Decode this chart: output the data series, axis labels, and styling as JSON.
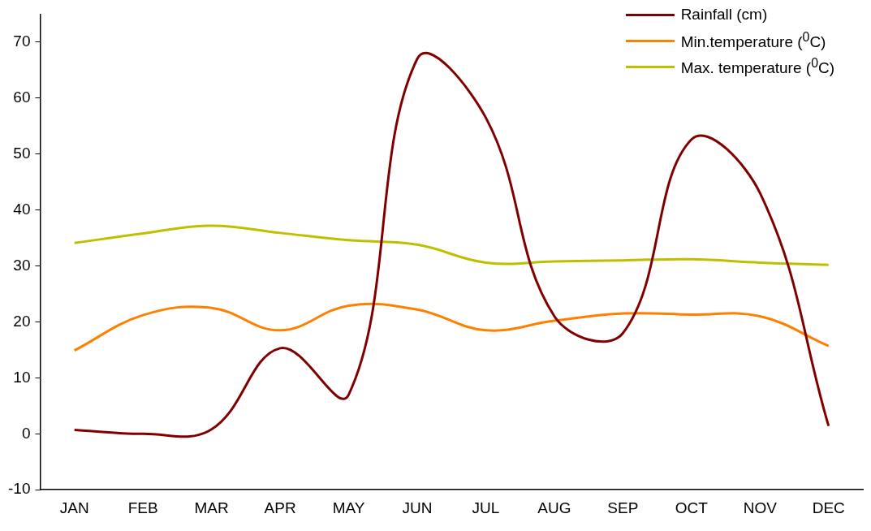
{
  "chart_data": {
    "type": "line",
    "categories": [
      "JAN",
      "FEB",
      "MAR",
      "APR",
      "MAY",
      "JUN",
      "JUL",
      "AUG",
      "SEP",
      "OCT",
      "NOV",
      "DEC"
    ],
    "series": [
      {
        "name": "Rainfall (cm)",
        "color": "#800000",
        "values": [
          0.7,
          0,
          0.8,
          15.3,
          7,
          67,
          56.5,
          21,
          18,
          52.6,
          43,
          1.4
        ]
      },
      {
        "name": "Min.temperature ($^{0}$C)",
        "color": "#ff8000",
        "values": [
          14.9,
          21.2,
          22.5,
          18.5,
          22.9,
          22.2,
          18.5,
          20.2,
          21.5,
          21.3,
          21,
          15.7
        ]
      },
      {
        "name": "Max. temperature ($^{0}$C)",
        "color": "#bfbf00",
        "values": [
          34.1,
          35.8,
          37.2,
          35.9,
          34.6,
          33.8,
          30.6,
          30.8,
          31,
          31.2,
          30.6,
          30.2
        ]
      }
    ],
    "ylim": [
      -10,
      75
    ],
    "yticks": [
      -10,
      0,
      10,
      20,
      30,
      40,
      50,
      60,
      70
    ],
    "grid": false,
    "legend": "top right",
    "marker": "none",
    "line_style": "solid"
  }
}
